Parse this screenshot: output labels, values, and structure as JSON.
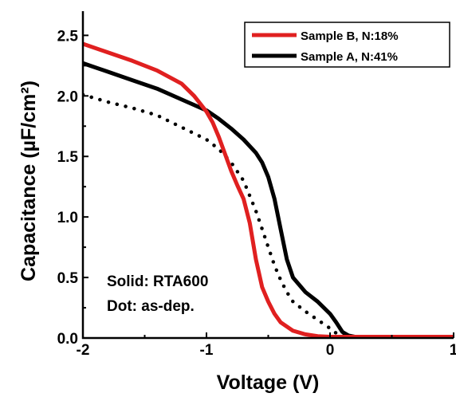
{
  "chart_data": {
    "type": "line",
    "xlabel": "Voltage (V)",
    "ylabel": "Capacitance (µF/cm²)",
    "xlim": [
      -2,
      1
    ],
    "ylim": [
      0,
      2.7
    ],
    "x_ticks": [
      -2,
      -1,
      0,
      1
    ],
    "x_tick_labels": [
      "-2",
      "-1",
      "0",
      "1"
    ],
    "y_ticks": [
      0.0,
      0.5,
      1.0,
      1.5,
      2.0,
      2.5
    ],
    "y_tick_labels": [
      "0.0",
      "0.5",
      "1.0",
      "1.5",
      "2.0",
      "2.5"
    ],
    "grid": false,
    "legend_position": "top-right",
    "annotations": [
      "Solid: RTA600",
      "Dot: as-dep."
    ],
    "series": [
      {
        "name": "Sample B, N:18%",
        "color": "#e02020",
        "style": "solid",
        "points": [
          [
            -2.0,
            2.43
          ],
          [
            -1.8,
            2.36
          ],
          [
            -1.6,
            2.29
          ],
          [
            -1.4,
            2.21
          ],
          [
            -1.2,
            2.1
          ],
          [
            -1.1,
            2.0
          ],
          [
            -1.0,
            1.87
          ],
          [
            -0.95,
            1.78
          ],
          [
            -0.9,
            1.66
          ],
          [
            -0.85,
            1.52
          ],
          [
            -0.8,
            1.38
          ],
          [
            -0.75,
            1.26
          ],
          [
            -0.7,
            1.15
          ],
          [
            -0.65,
            0.95
          ],
          [
            -0.6,
            0.65
          ],
          [
            -0.55,
            0.42
          ],
          [
            -0.5,
            0.3
          ],
          [
            -0.45,
            0.2
          ],
          [
            -0.4,
            0.13
          ],
          [
            -0.3,
            0.06
          ],
          [
            -0.2,
            0.03
          ],
          [
            -0.1,
            0.015
          ],
          [
            0.0,
            0.01
          ],
          [
            0.2,
            0.01
          ],
          [
            0.5,
            0.01
          ],
          [
            1.0,
            0.01
          ]
        ]
      },
      {
        "name": "Sample A, N:41%",
        "color": "#000000",
        "style": "solid",
        "points": [
          [
            -2.0,
            2.27
          ],
          [
            -1.8,
            2.2
          ],
          [
            -1.6,
            2.13
          ],
          [
            -1.4,
            2.06
          ],
          [
            -1.2,
            1.97
          ],
          [
            -1.0,
            1.88
          ],
          [
            -0.9,
            1.81
          ],
          [
            -0.8,
            1.73
          ],
          [
            -0.7,
            1.64
          ],
          [
            -0.6,
            1.53
          ],
          [
            -0.55,
            1.45
          ],
          [
            -0.5,
            1.33
          ],
          [
            -0.45,
            1.15
          ],
          [
            -0.4,
            0.9
          ],
          [
            -0.35,
            0.65
          ],
          [
            -0.3,
            0.5
          ],
          [
            -0.2,
            0.38
          ],
          [
            -0.1,
            0.3
          ],
          [
            0.0,
            0.2
          ],
          [
            0.05,
            0.13
          ],
          [
            0.1,
            0.05
          ],
          [
            0.15,
            0.02
          ],
          [
            0.2,
            0.01
          ],
          [
            0.5,
            0.01
          ],
          [
            1.0,
            0.01
          ]
        ]
      },
      {
        "name": "",
        "color": "#000000",
        "style": "dotted",
        "points": [
          [
            -2.0,
            2.01
          ],
          [
            -1.8,
            1.95
          ],
          [
            -1.6,
            1.9
          ],
          [
            -1.4,
            1.84
          ],
          [
            -1.2,
            1.74
          ],
          [
            -1.0,
            1.64
          ],
          [
            -0.9,
            1.56
          ],
          [
            -0.8,
            1.45
          ],
          [
            -0.7,
            1.3
          ],
          [
            -0.6,
            1.05
          ],
          [
            -0.55,
            0.9
          ],
          [
            -0.5,
            0.75
          ],
          [
            -0.45,
            0.6
          ],
          [
            -0.4,
            0.48
          ],
          [
            -0.35,
            0.38
          ],
          [
            -0.3,
            0.3
          ],
          [
            -0.2,
            0.22
          ],
          [
            -0.1,
            0.15
          ],
          [
            0.0,
            0.08
          ],
          [
            0.05,
            0.04
          ],
          [
            0.1,
            0.02
          ],
          [
            0.2,
            0.01
          ],
          [
            0.5,
            0.01
          ],
          [
            1.0,
            0.01
          ]
        ]
      }
    ]
  }
}
